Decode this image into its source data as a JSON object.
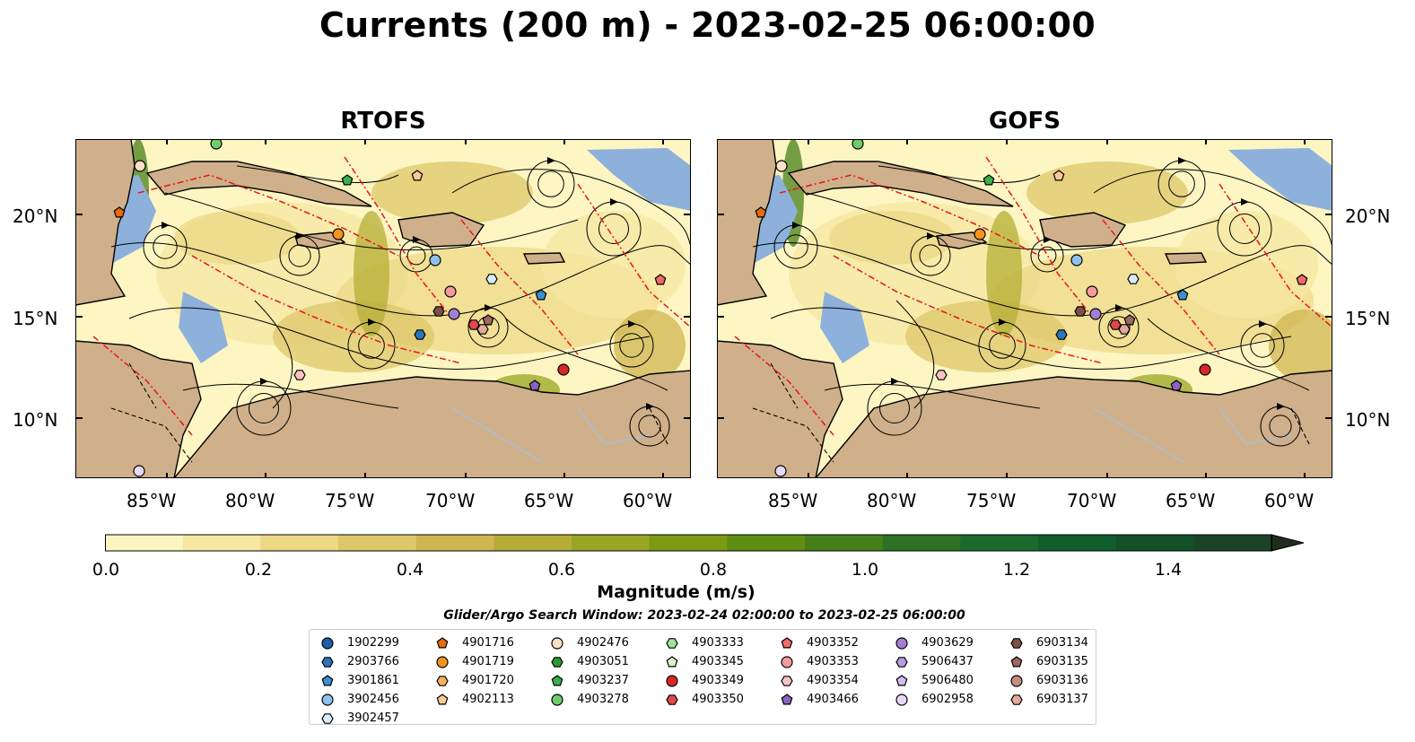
{
  "title": "Currents (200 m) - 2023-02-25 06:00:00",
  "panels": [
    {
      "title": "RTOFS"
    },
    {
      "title": "GOFS"
    }
  ],
  "axes": {
    "lon_ticks": [
      "85°W",
      "80°W",
      "75°W",
      "70°W",
      "65°W",
      "60°W"
    ],
    "lat_ticks": [
      "20°N",
      "15°N",
      "10°N"
    ]
  },
  "colorbar": {
    "label": "Magnitude (m/s)",
    "ticks": [
      "0.0",
      "0.2",
      "0.4",
      "0.6",
      "0.8",
      "1.0",
      "1.2",
      "1.4"
    ],
    "range": [
      0,
      1.5
    ],
    "extend": "max",
    "colors": [
      "#fdf6c3",
      "#f6e7a2",
      "#ecd885",
      "#ddc769",
      "#cfb652",
      "#b6ad36",
      "#98a623",
      "#7c9a12",
      "#5f8e14",
      "#467f1a",
      "#2e7225",
      "#1a6a2e",
      "#0f5e2c",
      "#12502a",
      "#1b4426",
      "#1f3a22",
      "#1f2e1c"
    ]
  },
  "search_window": "Glider/Argo Search Window: 2023-02-24 02:00:00 to 2023-02-25 06:00:00",
  "map_colors": {
    "land": "#cfb08a",
    "ocean_shallow": "#8eb1dc",
    "transects": "#e8141b",
    "streamlines": "#000000",
    "rivers": "#a9bfd8"
  },
  "legend": {
    "columns": [
      [
        {
          "id": "1902299",
          "marker": "circle",
          "color": "#1f5fa8"
        },
        {
          "id": "2903766",
          "marker": "hexagon",
          "color": "#2b74b8"
        },
        {
          "id": "3901861",
          "marker": "pentagon",
          "color": "#3d8fd1"
        },
        {
          "id": "3902456",
          "marker": "circle",
          "color": "#8ec2ec"
        },
        {
          "id": "3902457",
          "marker": "hexagon",
          "color": "#d8ecfa"
        }
      ],
      [
        {
          "id": "4901716",
          "marker": "pentagon",
          "color": "#e86b0c"
        },
        {
          "id": "4901719",
          "marker": "circle",
          "color": "#f6921e"
        },
        {
          "id": "4901720",
          "marker": "hexagon",
          "color": "#f9ad5f"
        },
        {
          "id": "4902113",
          "marker": "pentagon",
          "color": "#fbc99a"
        }
      ],
      [
        {
          "id": "4902476",
          "marker": "circle",
          "color": "#fde0c6"
        },
        {
          "id": "4903051",
          "marker": "hexagon",
          "color": "#2a9b33"
        },
        {
          "id": "4903237",
          "marker": "pentagon",
          "color": "#3bb04a"
        },
        {
          "id": "4903278",
          "marker": "circle",
          "color": "#6ccd6a"
        }
      ],
      [
        {
          "id": "4903333",
          "marker": "hexagon",
          "color": "#9ee496"
        },
        {
          "id": "4903345",
          "marker": "pentagon",
          "color": "#d5f6cc"
        },
        {
          "id": "4903349",
          "marker": "circle",
          "color": "#d62728"
        },
        {
          "id": "4903350",
          "marker": "hexagon",
          "color": "#e0484a"
        }
      ],
      [
        {
          "id": "4903352",
          "marker": "pentagon",
          "color": "#ef6a6c"
        },
        {
          "id": "4903353",
          "marker": "circle",
          "color": "#f59a9c"
        },
        {
          "id": "4903354",
          "marker": "hexagon",
          "color": "#f9c2c3"
        },
        {
          "id": "4903466",
          "marker": "pentagon",
          "color": "#8a63c1"
        }
      ],
      [
        {
          "id": "4903629",
          "marker": "circle",
          "color": "#a27fd0"
        },
        {
          "id": "5906437",
          "marker": "hexagon",
          "color": "#b99de0"
        },
        {
          "id": "5906480",
          "marker": "pentagon",
          "color": "#d3bdf0"
        },
        {
          "id": "6902958",
          "marker": "circle",
          "color": "#e8d8fa"
        }
      ],
      [
        {
          "id": "6903134",
          "marker": "hexagon",
          "color": "#7d4f45"
        },
        {
          "id": "6903135",
          "marker": "pentagon",
          "color": "#9b6a5e"
        },
        {
          "id": "6903136",
          "marker": "circle",
          "color": "#c58b7e"
        },
        {
          "id": "6903137",
          "marker": "hexagon",
          "color": "#e3aa9b"
        }
      ]
    ]
  }
}
